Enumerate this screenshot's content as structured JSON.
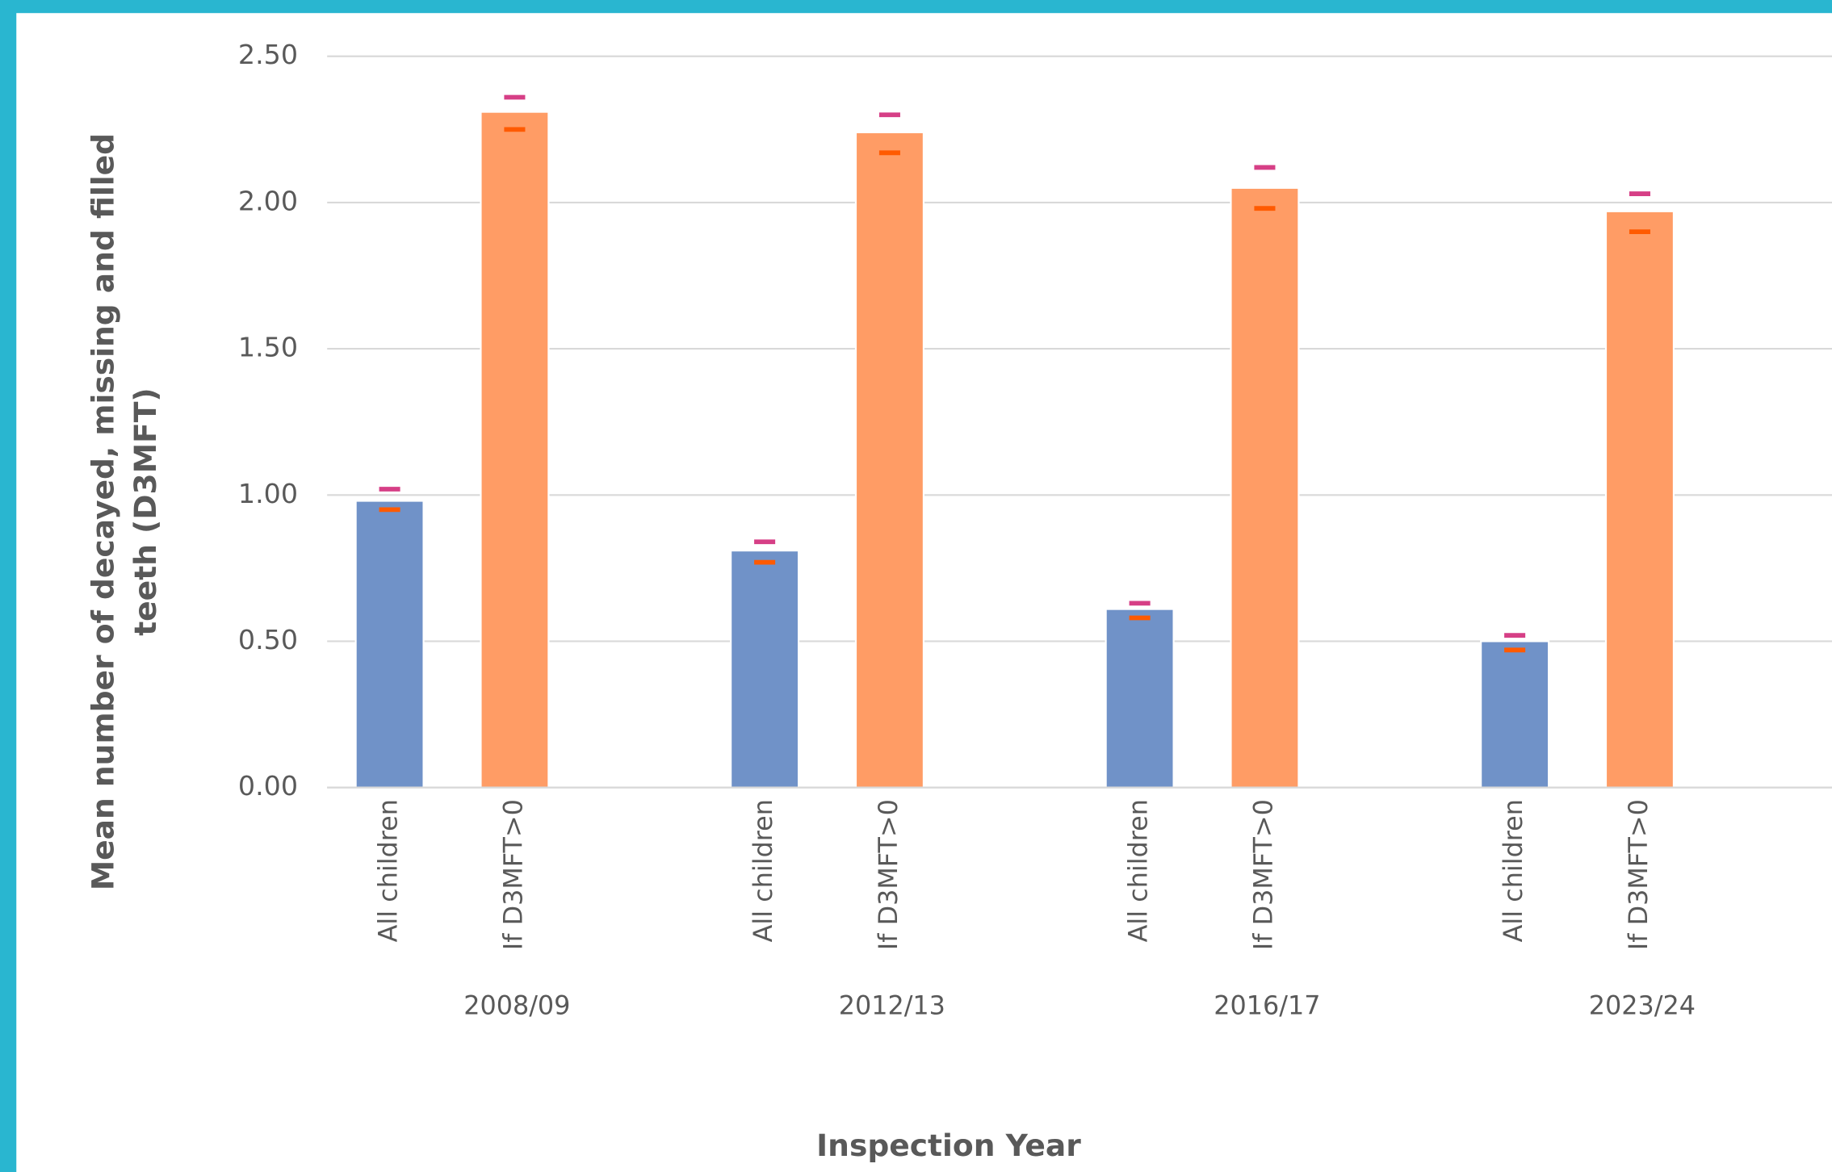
{
  "chart_data": {
    "type": "bar",
    "ylabel": [
      "Mean number of decayed, missing and filled",
      "teeth (D3MFT)"
    ],
    "xlabel": "Inspection Year",
    "groups": [
      "2008/09",
      "2012/13",
      "2016/17",
      "2023/24"
    ],
    "categories": [
      "All children",
      "If D3MFT>0",
      "All children",
      "If D3MFT>0",
      "All children",
      "If D3MFT>0",
      "All children",
      "If D3MFT>0"
    ],
    "values": [
      0.98,
      2.31,
      0.81,
      2.24,
      0.61,
      2.05,
      0.5,
      1.97
    ],
    "upper": [
      1.02,
      2.36,
      0.84,
      2.3,
      0.63,
      2.12,
      0.52,
      2.03
    ],
    "lower": [
      0.95,
      2.25,
      0.77,
      2.17,
      0.58,
      1.98,
      0.47,
      1.9
    ],
    "colors": [
      "#7092c8",
      "#ff9c65",
      "#7092c8",
      "#ff9c65",
      "#7092c8",
      "#ff9c65",
      "#7092c8",
      "#ff9c65"
    ],
    "upper_color": "#d63f86",
    "lower_color": "#ff5a00",
    "ylim": [
      0,
      2.5
    ],
    "yticks": [
      {
        "value": 0,
        "label": "0.00"
      },
      {
        "value": 0.5,
        "label": "0.50"
      },
      {
        "value": 1,
        "label": "1.00"
      },
      {
        "value": 1.5,
        "label": "1.50"
      },
      {
        "value": 2,
        "label": "2.00"
      },
      {
        "value": 2.5,
        "label": "2.50"
      }
    ],
    "grid": true
  }
}
